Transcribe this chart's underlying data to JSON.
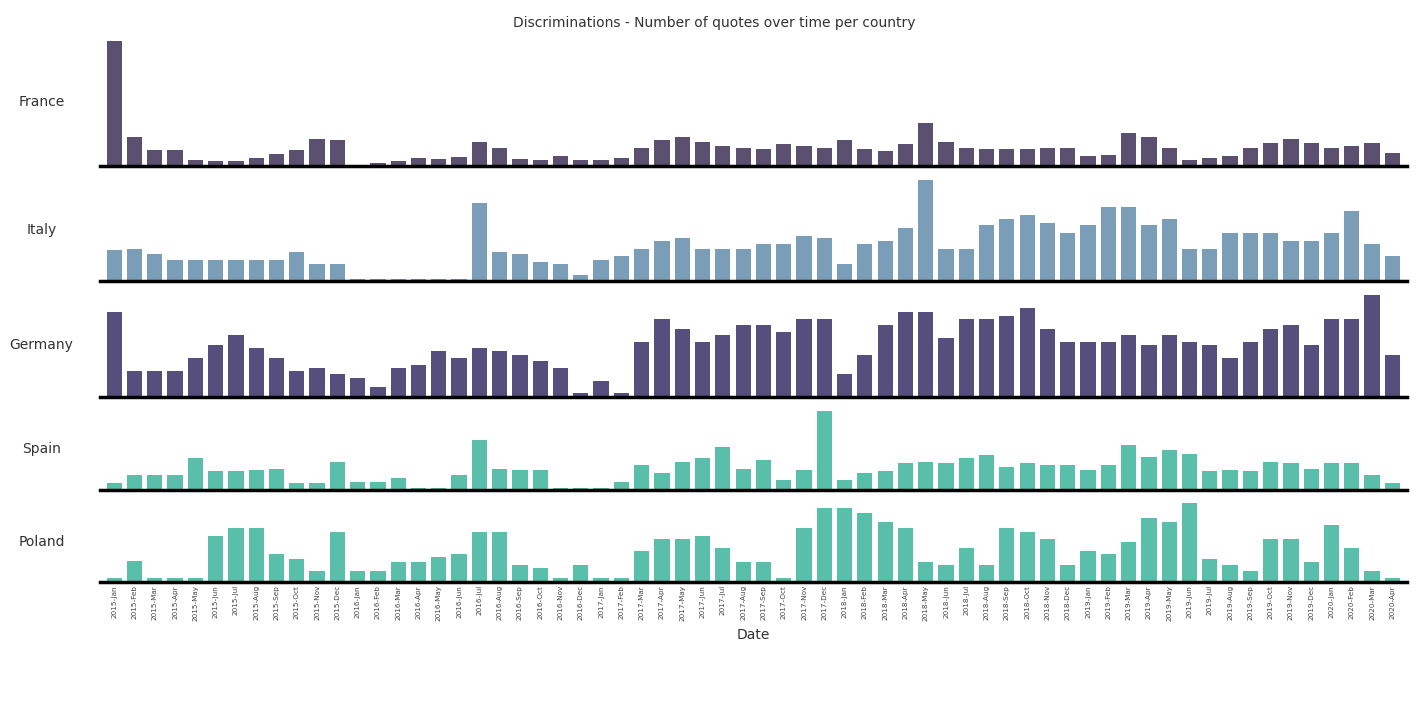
{
  "title": "Discriminations - Number of quotes over time per country",
  "xlabel": "Date",
  "countries": [
    "France",
    "Italy",
    "Germany",
    "Spain",
    "Poland"
  ],
  "colors": [
    "#5c5070",
    "#7b9eb8",
    "#564f7e",
    "#5abfaa",
    "#5abfaa"
  ],
  "dates": [
    "2015-Jan",
    "2015-Feb",
    "2015-Mar",
    "2015-Apr",
    "2015-May",
    "2015-Jun",
    "2015-Jul",
    "2015-Aug",
    "2015-Sep",
    "2015-Oct",
    "2015-Nov",
    "2015-Dec",
    "2016-Jan",
    "2016-Feb",
    "2016-Mar",
    "2016-Apr",
    "2016-May",
    "2016-Jun",
    "2016-Jul",
    "2016-Aug",
    "2016-Sep",
    "2016-Oct",
    "2016-Nov",
    "2016-Dec",
    "2017-Jan",
    "2017-Feb",
    "2017-Mar",
    "2017-Apr",
    "2017-May",
    "2017-Jun",
    "2017-Jul",
    "2017-Aug",
    "2017-Sep",
    "2017-Oct",
    "2017-Nov",
    "2017-Dec",
    "2018-Jan",
    "2018-Feb",
    "2018-Mar",
    "2018-Apr",
    "2018-May",
    "2018-Jun",
    "2018-Jul",
    "2018-Aug",
    "2018-Sep",
    "2018-Oct",
    "2018-Nov",
    "2018-Dec",
    "2019-Jan",
    "2019-Feb",
    "2019-Mar",
    "2019-Apr",
    "2019-May",
    "2019-Jun",
    "2019-Jul",
    "2019-Aug",
    "2019-Sep",
    "2019-Oct",
    "2019-Nov",
    "2019-Dec",
    "2020-Jan",
    "2020-Feb",
    "2020-Mar",
    "2020-Apr"
  ],
  "height_ratios": [
    2.2,
    1.8,
    1.8,
    1.4,
    1.4
  ],
  "data": {
    "France": [
      320,
      75,
      40,
      40,
      15,
      12,
      12,
      20,
      30,
      40,
      70,
      65,
      3,
      8,
      12,
      20,
      18,
      22,
      60,
      45,
      18,
      15,
      25,
      15,
      15,
      20,
      45,
      65,
      75,
      60,
      50,
      45,
      42,
      55,
      50,
      45,
      65,
      42,
      38,
      55,
      110,
      62,
      45,
      42,
      42,
      42,
      45,
      45,
      25,
      28,
      85,
      75,
      45,
      15,
      20,
      25,
      45,
      58,
      68,
      58,
      45,
      50,
      58,
      32
    ],
    "Italy": [
      40,
      42,
      35,
      28,
      28,
      28,
      28,
      28,
      28,
      38,
      22,
      22,
      3,
      3,
      3,
      3,
      3,
      3,
      100,
      38,
      35,
      25,
      22,
      8,
      28,
      32,
      42,
      52,
      55,
      42,
      42,
      42,
      48,
      48,
      58,
      55,
      22,
      48,
      52,
      68,
      130,
      42,
      42,
      72,
      80,
      85,
      75,
      62,
      72,
      95,
      95,
      72,
      80,
      42,
      42,
      62,
      62,
      62,
      52,
      52,
      62,
      90,
      48,
      32
    ],
    "Germany": [
      65,
      20,
      20,
      20,
      30,
      40,
      48,
      38,
      30,
      20,
      22,
      18,
      15,
      8,
      22,
      25,
      35,
      30,
      38,
      35,
      32,
      28,
      22,
      3,
      12,
      3,
      42,
      60,
      52,
      42,
      48,
      55,
      55,
      50,
      60,
      60,
      18,
      32,
      55,
      65,
      65,
      45,
      60,
      60,
      62,
      68,
      52,
      42,
      42,
      42,
      48,
      40,
      48,
      42,
      40,
      30,
      42,
      52,
      55,
      40,
      60,
      60,
      78,
      32
    ],
    "Spain": [
      10,
      22,
      22,
      22,
      48,
      28,
      28,
      30,
      32,
      10,
      10,
      42,
      12,
      12,
      18,
      3,
      3,
      22,
      75,
      32,
      30,
      30,
      3,
      3,
      3,
      12,
      38,
      25,
      42,
      48,
      65,
      32,
      45,
      15,
      30,
      120,
      15,
      25,
      28,
      40,
      42,
      40,
      48,
      52,
      35,
      40,
      38,
      38,
      30,
      38,
      68,
      50,
      60,
      55,
      28,
      30,
      28,
      42,
      40,
      32,
      40,
      40,
      22,
      10
    ],
    "Poland": [
      3,
      15,
      3,
      3,
      3,
      32,
      38,
      38,
      20,
      16,
      8,
      35,
      8,
      8,
      14,
      14,
      18,
      20,
      35,
      35,
      12,
      10,
      3,
      12,
      3,
      3,
      22,
      30,
      30,
      32,
      24,
      14,
      14,
      3,
      38,
      52,
      52,
      48,
      42,
      38,
      14,
      12,
      24,
      12,
      38,
      35,
      30,
      12,
      22,
      20,
      28,
      45,
      42,
      55,
      16,
      12,
      8,
      30,
      30,
      14,
      40,
      24,
      8,
      3
    ]
  }
}
